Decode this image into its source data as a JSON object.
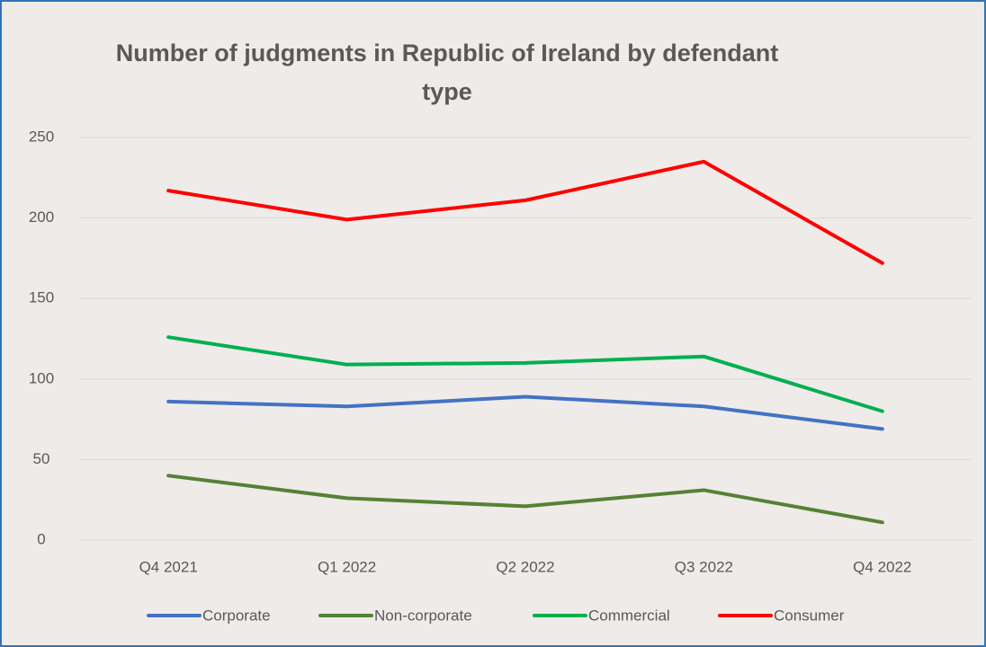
{
  "chart_data": {
    "type": "line",
    "title": "Number of judgments in Republic of Ireland by defendant type",
    "categories": [
      "Q4 2021",
      "Q1 2022",
      "Q2 2022",
      "Q3 2022",
      "Q4 2022"
    ],
    "series": [
      {
        "name": "Corporate",
        "color": "#4472c4",
        "values": [
          86,
          83,
          89,
          83,
          69
        ]
      },
      {
        "name": "Non-corporate",
        "color": "#548235",
        "values": [
          40,
          26,
          21,
          31,
          11
        ]
      },
      {
        "name": "Commercial",
        "color": "#00b050",
        "values": [
          126,
          109,
          110,
          114,
          80
        ]
      },
      {
        "name": "Consumer",
        "color": "#ff0000",
        "values": [
          217,
          199,
          211,
          235,
          172
        ]
      }
    ],
    "ylim": [
      0,
      250
    ],
    "yticks": [
      0,
      50,
      100,
      150,
      200,
      250
    ],
    "grid": true,
    "legend": "bottom"
  }
}
